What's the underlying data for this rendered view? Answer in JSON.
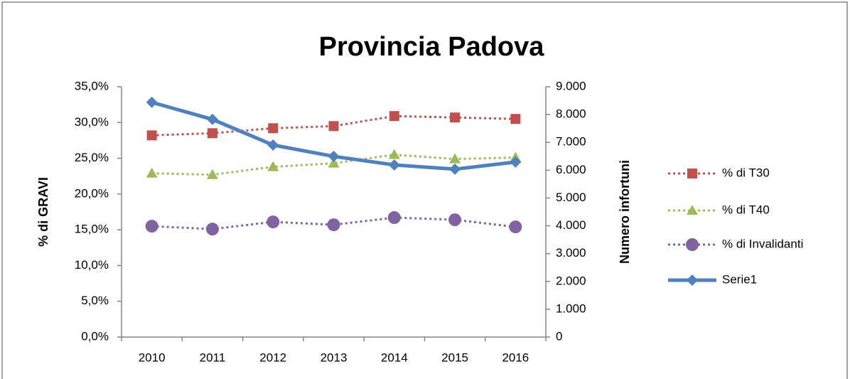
{
  "chart_data": {
    "type": "line",
    "title": "Provincia Padova",
    "y_label": "% di GRAVI",
    "y2_label": "Numero infortuni",
    "categories": [
      "2010",
      "2011",
      "2012",
      "2013",
      "2014",
      "2015",
      "2016"
    ],
    "ylim": [
      0,
      35
    ],
    "yticks": [
      {
        "value": 0,
        "label": "0,0%"
      },
      {
        "value": 5,
        "label": "5,0%"
      },
      {
        "value": 10,
        "label": "10,0%"
      },
      {
        "value": 15,
        "label": "15,0%"
      },
      {
        "value": 20,
        "label": "20,0%"
      },
      {
        "value": 25,
        "label": "25,0%"
      },
      {
        "value": 30,
        "label": "30,0%"
      },
      {
        "value": 35,
        "label": "35,0%"
      }
    ],
    "y2lim": [
      0,
      9000
    ],
    "y2ticks": [
      0,
      {
        "value": 1000,
        "label": "1.000"
      },
      {
        "value": 2000,
        "label": "2.000"
      },
      {
        "value": 3000,
        "label": "3.000"
      },
      {
        "value": 4000,
        "label": "4.000"
      },
      {
        "value": 5000,
        "label": "5.000"
      },
      {
        "value": 6000,
        "label": "6.000"
      },
      {
        "value": 7000,
        "label": "7.000"
      },
      {
        "value": 8000,
        "label": "8.000"
      },
      {
        "value": 9000,
        "label": "9.000"
      }
    ],
    "grid": false,
    "legend": "right",
    "series": [
      {
        "name": "% di T30",
        "color": "#c0504d",
        "line_style": "dotted",
        "marker": "square",
        "values": [
          28.2,
          28.5,
          29.2,
          29.5,
          30.9,
          30.7,
          30.5
        ]
      },
      {
        "name": "% di T40",
        "color": "#9bbb59",
        "line_style": "dotted",
        "marker": "triangle",
        "values": [
          22.9,
          22.7,
          23.8,
          24.3,
          25.5,
          24.9,
          25.1
        ]
      },
      {
        "name": "% di Invalidanti",
        "color": "#8064a2",
        "line_style": "dotted",
        "marker": "circle",
        "values": [
          15.5,
          15.1,
          16.1,
          15.7,
          16.7,
          16.4,
          15.4
        ]
      },
      {
        "name": "Serie1",
        "color": "#4f81bd",
        "line_style": "solid",
        "marker": "diamond",
        "axis": "y2",
        "values": [
          8440,
          7826,
          6905,
          6496,
          6189,
          6036,
          6292
        ]
      }
    ]
  }
}
